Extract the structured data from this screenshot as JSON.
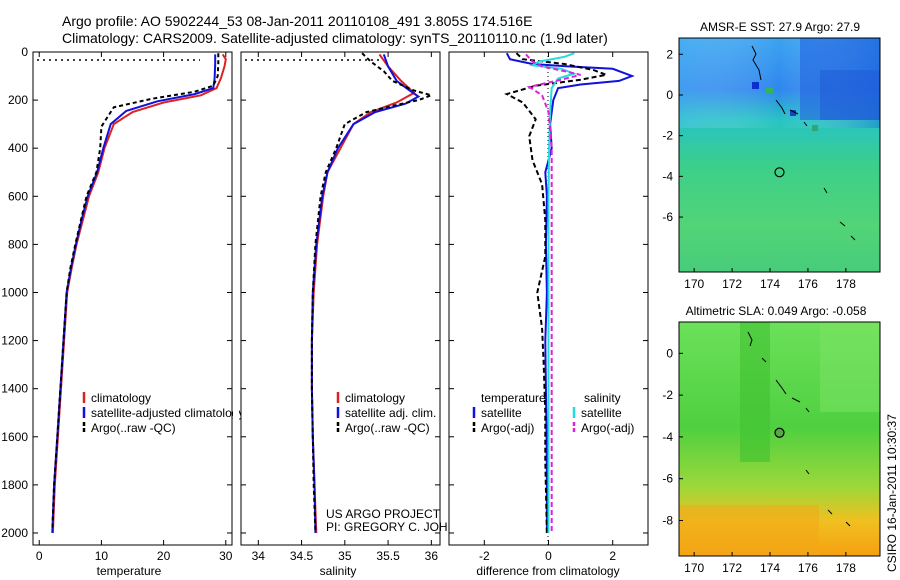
{
  "header": {
    "line1": "Argo profile: AO 5902244_53 08-Jan-2011 20110108_491 3.805S 174.516E",
    "line2": "Climatology: CARS2009. Satellite-adjusted climatology: synTS_20110110.nc (1.9d later)"
  },
  "credit": {
    "line1": "US ARGO PROJECT",
    "line2": "PI: GREGORY C. JOHNSON"
  },
  "timestamp": "CSIRO 16-Jan-2011 10:30:37",
  "colors": {
    "climatology": "#dd2222",
    "satellite": "#1111dd",
    "argo": "#000000",
    "satellite_salinity": "#22dddd",
    "argo_salinity": "#dd22dd"
  },
  "chart_data": [
    {
      "id": "temperature",
      "type": "line",
      "xlabel": "temperature",
      "ylabel": "",
      "xlim": [
        -1,
        31
      ],
      "ylim": [
        2050,
        0
      ],
      "xticks": [
        "0",
        "10",
        "20",
        "30"
      ],
      "xtick_values": [
        0,
        10,
        20,
        30
      ],
      "yticks": [
        "0",
        "200",
        "400",
        "600",
        "800",
        "1000",
        "1200",
        "1400",
        "1600",
        "1800",
        "2000"
      ],
      "ytick_values": [
        0,
        200,
        400,
        600,
        800,
        1000,
        1200,
        1400,
        1600,
        1800,
        2000
      ],
      "legend": [
        "climatology",
        "satellite-adjusted climatology",
        "Argo(..raw -QC)"
      ],
      "series": [
        {
          "name": "climatology",
          "color": "#dd2222",
          "dash": "",
          "points": [
            [
              29.5,
              10
            ],
            [
              30.0,
              30
            ],
            [
              29.8,
              60
            ],
            [
              29.2,
              110
            ],
            [
              28.5,
              150
            ],
            [
              26,
              180
            ],
            [
              20,
              210
            ],
            [
              15,
              250
            ],
            [
              12,
              300
            ],
            [
              10.5,
              400
            ],
            [
              9.5,
              500
            ],
            [
              8,
              600
            ],
            [
              7,
              700
            ],
            [
              6,
              800
            ],
            [
              5.2,
              900
            ],
            [
              4.5,
              1000
            ],
            [
              4,
              1200
            ],
            [
              3.5,
              1400
            ],
            [
              3,
              1600
            ],
            [
              2.5,
              1800
            ],
            [
              2.2,
              2000
            ]
          ]
        },
        {
          "name": "satellite-adjusted climatology",
          "color": "#1111dd",
          "dash": "",
          "points": [
            [
              28.3,
              10
            ],
            [
              28.3,
              50
            ],
            [
              28.2,
              110
            ],
            [
              28.0,
              150
            ],
            [
              25,
              175
            ],
            [
              19,
              205
            ],
            [
              14,
              245
            ],
            [
              11.5,
              300
            ],
            [
              10.3,
              400
            ],
            [
              9.3,
              500
            ],
            [
              7.8,
              600
            ],
            [
              6.8,
              700
            ],
            [
              5.9,
              800
            ],
            [
              5.1,
              900
            ],
            [
              4.4,
              1000
            ],
            [
              3.9,
              1200
            ],
            [
              3.4,
              1400
            ],
            [
              2.9,
              1600
            ],
            [
              2.4,
              1800
            ],
            [
              2.1,
              2000
            ]
          ]
        },
        {
          "name": "Argo(..raw -QC)",
          "color": "#000000",
          "dash": "4,3",
          "points": [
            [
              28.8,
              5
            ],
            [
              28.8,
              50
            ],
            [
              28.7,
              100
            ],
            [
              28,
              140
            ],
            [
              25,
              165
            ],
            [
              18,
              195
            ],
            [
              12,
              230
            ],
            [
              11,
              270
            ],
            [
              10,
              310
            ],
            [
              9.8,
              400
            ],
            [
              9.2,
              500
            ],
            [
              7.6,
              600
            ],
            [
              6.7,
              700
            ],
            [
              5.8,
              800
            ],
            [
              5.0,
              900
            ],
            [
              4.4,
              1000
            ],
            [
              3.9,
              1200
            ],
            [
              3.4,
              1400
            ],
            [
              2.9,
              1600
            ],
            [
              2.4,
              1800
            ],
            [
              2.1,
              1990
            ]
          ]
        }
      ]
    },
    {
      "id": "salinity",
      "type": "line",
      "xlabel": "salinity",
      "xlim": [
        33.8,
        36.1
      ],
      "ylim": [
        2050,
        0
      ],
      "xticks": [
        "34",
        "34.5",
        "35",
        "35.5",
        "36"
      ],
      "xtick_values": [
        34,
        34.5,
        35,
        35.5,
        36
      ],
      "legend": [
        "climatology",
        "satellite adj. clim.",
        "Argo(..raw -QC)"
      ],
      "series": [
        {
          "name": "climatology",
          "color": "#dd2222",
          "dash": "",
          "points": [
            [
              35.4,
              10
            ],
            [
              35.5,
              60
            ],
            [
              35.65,
              120
            ],
            [
              35.8,
              170
            ],
            [
              35.6,
              210
            ],
            [
              35.3,
              250
            ],
            [
              35.1,
              300
            ],
            [
              34.95,
              400
            ],
            [
              34.8,
              500
            ],
            [
              34.75,
              600
            ],
            [
              34.68,
              800
            ],
            [
              34.64,
              1000
            ],
            [
              34.62,
              1200
            ],
            [
              34.62,
              1400
            ],
            [
              34.63,
              1600
            ],
            [
              34.65,
              1800
            ],
            [
              34.67,
              2000
            ]
          ]
        },
        {
          "name": "satellite adj. clim.",
          "color": "#1111dd",
          "dash": "",
          "points": [
            [
              35.45,
              10
            ],
            [
              35.5,
              60
            ],
            [
              35.6,
              120
            ],
            [
              35.75,
              160
            ],
            [
              35.85,
              185
            ],
            [
              35.7,
              215
            ],
            [
              35.35,
              250
            ],
            [
              35.1,
              300
            ],
            [
              34.92,
              400
            ],
            [
              34.8,
              500
            ],
            [
              34.74,
              600
            ],
            [
              34.67,
              800
            ],
            [
              34.63,
              1000
            ],
            [
              34.62,
              1200
            ],
            [
              34.62,
              1400
            ],
            [
              34.63,
              1600
            ],
            [
              34.65,
              1800
            ],
            [
              34.66,
              2000
            ]
          ]
        },
        {
          "name": "Argo(..raw -QC)",
          "color": "#000000",
          "dash": "4,3",
          "points": [
            [
              35.2,
              5
            ],
            [
              35.3,
              40
            ],
            [
              35.45,
              80
            ],
            [
              35.55,
              120
            ],
            [
              35.8,
              160
            ],
            [
              36.0,
              180
            ],
            [
              35.85,
              200
            ],
            [
              35.6,
              220
            ],
            [
              35.25,
              250
            ],
            [
              35.0,
              300
            ],
            [
              34.9,
              400
            ],
            [
              34.78,
              500
            ],
            [
              34.72,
              600
            ],
            [
              34.66,
              800
            ],
            [
              34.63,
              1000
            ],
            [
              34.62,
              1200
            ],
            [
              34.62,
              1400
            ],
            [
              34.63,
              1600
            ],
            [
              34.64,
              1800
            ],
            [
              34.66,
              1990
            ]
          ]
        }
      ]
    },
    {
      "id": "difference",
      "type": "line",
      "xlabel": "difference from climatology",
      "xlim": [
        -3.1,
        3.1
      ],
      "ylim": [
        2050,
        0
      ],
      "xticks": [
        "-2",
        "0",
        "2"
      ],
      "xtick_values": [
        -2,
        0,
        2
      ],
      "legend_headers": [
        "temperature",
        "salinity"
      ],
      "legend": [
        "satellite",
        "Argo(-adj)",
        "satellite",
        "Argo(-adj)"
      ],
      "series": [
        {
          "name": "temperature satellite",
          "color": "#1111dd",
          "dash": "",
          "points": [
            [
              -1.3,
              5
            ],
            [
              -1.2,
              30
            ],
            [
              -0.5,
              50
            ],
            [
              0.6,
              60
            ],
            [
              2.0,
              70
            ],
            [
              2.6,
              100
            ],
            [
              2.2,
              120
            ],
            [
              1.0,
              135
            ],
            [
              0.3,
              150
            ],
            [
              0.15,
              200
            ],
            [
              0.05,
              300
            ],
            [
              0.1,
              400
            ],
            [
              -0.1,
              500
            ],
            [
              -0.05,
              600
            ],
            [
              -0.08,
              800
            ],
            [
              -0.05,
              1000
            ],
            [
              -0.1,
              1200
            ],
            [
              -0.08,
              1400
            ],
            [
              -0.06,
              1600
            ],
            [
              -0.05,
              1800
            ],
            [
              -0.05,
              2000
            ]
          ]
        },
        {
          "name": "temperature Argo(-adj)",
          "color": "#000000",
          "dash": "5,3",
          "points": [
            [
              -1.0,
              5
            ],
            [
              -0.8,
              30
            ],
            [
              0.5,
              50
            ],
            [
              1.4,
              75
            ],
            [
              1.8,
              95
            ],
            [
              1.0,
              115
            ],
            [
              -0.4,
              140
            ],
            [
              -1.3,
              175
            ],
            [
              -0.8,
              210
            ],
            [
              -0.4,
              280
            ],
            [
              -0.6,
              350
            ],
            [
              -0.5,
              450
            ],
            [
              -0.2,
              550
            ],
            [
              -0.1,
              700
            ],
            [
              -0.1,
              850
            ],
            [
              -0.35,
              1000
            ],
            [
              -0.2,
              1150
            ],
            [
              -0.15,
              1300
            ],
            [
              -0.1,
              1500
            ],
            [
              -0.1,
              1700
            ],
            [
              -0.05,
              2000
            ]
          ]
        },
        {
          "name": "salinity satellite",
          "color": "#22dddd",
          "dash": "",
          "points": [
            [
              0.8,
              5
            ],
            [
              0.5,
              20
            ],
            [
              -0.3,
              40
            ],
            [
              -0.5,
              55
            ],
            [
              0.4,
              70
            ],
            [
              0.8,
              90
            ],
            [
              0.3,
              110
            ],
            [
              0.1,
              150
            ],
            [
              0.05,
              250
            ],
            [
              0.02,
              400
            ],
            [
              0.0,
              600
            ],
            [
              0.0,
              800
            ],
            [
              0.0,
              1000
            ],
            [
              0.0,
              1200
            ],
            [
              0.0,
              1400
            ],
            [
              0.0,
              1600
            ],
            [
              0.0,
              1800
            ],
            [
              0.0,
              2000
            ]
          ]
        },
        {
          "name": "salinity Argo(-adj)",
          "color": "#dd22dd",
          "dash": "5,3",
          "points": [
            [
              -0.7,
              10
            ],
            [
              -0.5,
              40
            ],
            [
              -0.2,
              60
            ],
            [
              0.5,
              80
            ],
            [
              1.0,
              95
            ],
            [
              0.4,
              115
            ],
            [
              -0.6,
              145
            ],
            [
              -0.2,
              180
            ],
            [
              0.0,
              250
            ],
            [
              0.1,
              400
            ],
            [
              0.1,
              600
            ],
            [
              0.1,
              800
            ],
            [
              0.1,
              1000
            ],
            [
              0.1,
              1200
            ],
            [
              0.1,
              1400
            ],
            [
              0.1,
              1600
            ],
            [
              0.1,
              1800
            ],
            [
              0.1,
              2000
            ]
          ]
        }
      ]
    },
    {
      "id": "sst-map",
      "type": "heatmap",
      "title": "AMSR-E SST: 27.9 Argo: 27.9",
      "xlim": [
        169.2,
        179.8
      ],
      "ylim": [
        -8.7,
        2.8
      ],
      "xticks": [
        "170",
        "172",
        "174",
        "176",
        "178"
      ],
      "xtick_values": [
        170,
        172,
        174,
        176,
        178
      ],
      "yticks": [
        "2",
        "0",
        "-2",
        "-4",
        "-6"
      ],
      "ytick_values": [
        2,
        0,
        -2,
        -4,
        -6
      ],
      "marker": {
        "lon": 174.5,
        "lat": -3.8
      }
    },
    {
      "id": "sla-map",
      "type": "heatmap",
      "title": "Altimetric SLA: 0.049 Argo: -0.058",
      "xlim": [
        169.2,
        179.8
      ],
      "ylim": [
        -9.7,
        1.5
      ],
      "xticks": [
        "170",
        "172",
        "174",
        "176",
        "178"
      ],
      "xtick_values": [
        170,
        172,
        174,
        176,
        178
      ],
      "yticks": [
        "0",
        "-2",
        "-4",
        "-6",
        "-8"
      ],
      "ytick_values": [
        0,
        -2,
        -4,
        -6,
        -8
      ],
      "marker": {
        "lon": 174.5,
        "lat": -3.8
      }
    }
  ]
}
